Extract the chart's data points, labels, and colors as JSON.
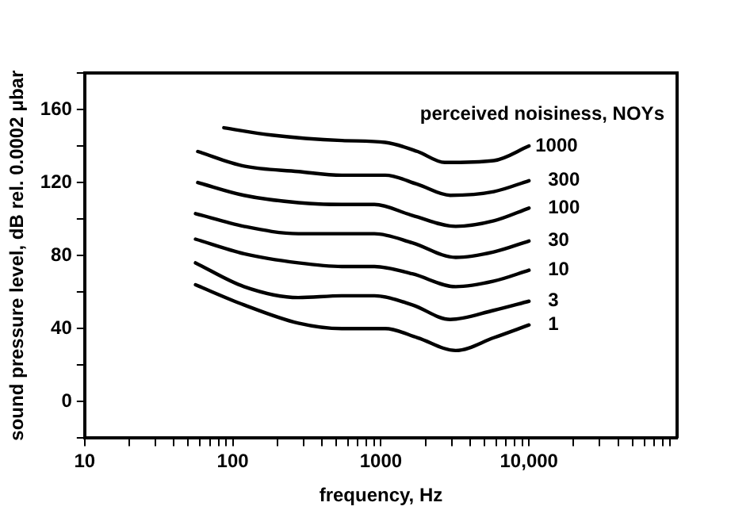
{
  "chart_data": {
    "type": "line",
    "xlabel": "frequency, Hz",
    "ylabel": "sound pressure level, dB rel. 0.0002 μbar",
    "legend_title": "perceived noisiness, NOYs",
    "log": "x",
    "xlim": [
      10,
      100000
    ],
    "xticks": [
      10,
      {
        "value": 20,
        "label": null
      },
      {
        "value": 30,
        "label": null
      },
      {
        "value": 40,
        "label": null
      },
      {
        "value": 50,
        "label": null
      },
      {
        "value": 60,
        "label": null
      },
      {
        "value": 70,
        "label": null
      },
      {
        "value": 80,
        "label": null
      },
      {
        "value": 90,
        "label": null
      },
      100,
      {
        "value": 200,
        "label": null
      },
      {
        "value": 300,
        "label": null
      },
      {
        "value": 400,
        "label": null
      },
      {
        "value": 500,
        "label": null
      },
      {
        "value": 600,
        "label": null
      },
      {
        "value": 700,
        "label": null
      },
      {
        "value": 800,
        "label": null
      },
      {
        "value": 900,
        "label": null
      },
      1000,
      {
        "value": 2000,
        "label": null
      },
      {
        "value": 3000,
        "label": null
      },
      {
        "value": 4000,
        "label": null
      },
      {
        "value": 5000,
        "label": null
      },
      {
        "value": 6000,
        "label": null
      },
      {
        "value": 7000,
        "label": null
      },
      {
        "value": 8000,
        "label": null
      },
      {
        "value": 9000,
        "label": null
      },
      {
        "value": 10000,
        "label": "10,000"
      },
      {
        "value": 20000,
        "label": null
      },
      {
        "value": 30000,
        "label": null
      },
      {
        "value": 40000,
        "label": null
      },
      {
        "value": 50000,
        "label": null
      },
      {
        "value": 60000,
        "label": null
      },
      {
        "value": 70000,
        "label": null
      },
      {
        "value": 80000,
        "label": null
      },
      {
        "value": 90000,
        "label": null
      }
    ],
    "ylim": [
      -20,
      180
    ],
    "yticks": [
      {
        "value": -20,
        "label": null
      },
      0,
      {
        "value": 20,
        "label": null
      },
      40,
      {
        "value": 60,
        "label": null
      },
      80,
      {
        "value": 100,
        "label": null
      },
      120,
      {
        "value": 140,
        "label": null
      },
      160,
      {
        "value": 180,
        "label": null
      }
    ],
    "grid": false,
    "legend": false,
    "marker": "none",
    "line_style": "solid",
    "series": [
      {
        "name": "1000",
        "color": "#000000",
        "x": [
          87,
          182,
          545,
          1070,
          1770,
          2700,
          5780,
          10000
        ],
        "values": [
          150,
          146,
          143,
          142,
          137,
          131,
          132,
          140
        ]
      },
      {
        "name": "300",
        "color": "#000000",
        "x": [
          58,
          119,
          277,
          545,
          1070,
          1770,
          2940,
          5780,
          10000
        ],
        "values": [
          137,
          129,
          126,
          124,
          124,
          119,
          113,
          115,
          121
        ]
      },
      {
        "name": "100",
        "color": "#000000",
        "x": [
          58,
          119,
          277,
          545,
          904,
          1630,
          3200,
          5780,
          10000
        ],
        "values": [
          120,
          113,
          109,
          108,
          108,
          102,
          96,
          99,
          106
        ]
      },
      {
        "name": "30",
        "color": "#000000",
        "x": [
          56,
          119,
          277,
          545,
          904,
          1630,
          3200,
          5780,
          10000
        ],
        "values": [
          103,
          96,
          92,
          92,
          92,
          87,
          79,
          82,
          88
        ]
      },
      {
        "name": "10",
        "color": "#000000",
        "x": [
          56,
          119,
          277,
          545,
          904,
          1630,
          3200,
          5780,
          10000
        ],
        "values": [
          89,
          81,
          76,
          74,
          74,
          70,
          63,
          66,
          72
        ]
      },
      {
        "name": "3",
        "color": "#000000",
        "x": [
          56,
          119,
          277,
          545,
          904,
          1630,
          2940,
          5780,
          10000
        ],
        "values": [
          76,
          63,
          57,
          58,
          58,
          53,
          45,
          50,
          55
        ]
      },
      {
        "name": "1",
        "color": "#000000",
        "x": [
          56,
          119,
          277,
          545,
          1070,
          1770,
          3200,
          5780,
          10000
        ],
        "values": [
          64,
          53,
          43,
          40,
          40,
          35,
          28,
          35,
          42
        ]
      }
    ]
  }
}
